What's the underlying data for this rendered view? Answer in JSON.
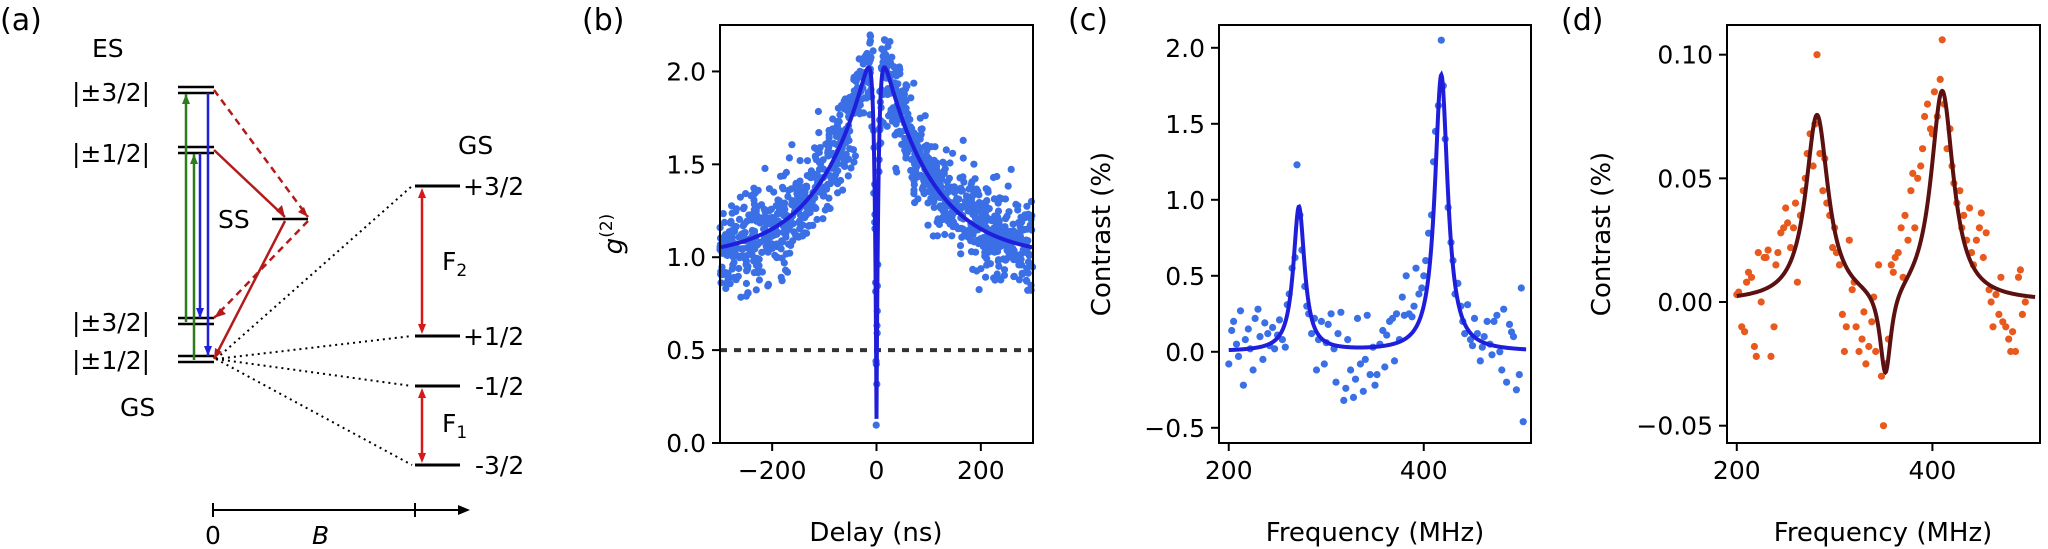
{
  "colors": {
    "blue": "#1f1fdb",
    "blue_data": "#3a6fe6",
    "orange": "#e8591d",
    "dark_red": "#5c1010",
    "red": "#d61a1a",
    "dark_red_line": "#b31b1b",
    "green": "#2e7d1d",
    "gray": "#333333"
  },
  "panel_a": {
    "panel_label": "(a)",
    "es_label": "ES",
    "es_upper": "|±3/2|",
    "es_lower": "|±1/2|",
    "ss_label": "SS",
    "gs_upper": "|±3/2|",
    "gs_lower": "|±1/2|",
    "gs_label": "GS",
    "gs_right_label": "GS",
    "zeeman_levels": [
      "+3/2",
      "+1/2",
      "-1/2",
      "-3/2"
    ],
    "f2_label": "F",
    "f2_sub": "2",
    "f1_label": "F",
    "f1_sub": "1",
    "b_axis_zero": "0",
    "b_axis_label": "B"
  },
  "chart_data": [
    {
      "type": "scatter",
      "panel_label": "(b)",
      "xlabel": "Delay (ns)",
      "ylabel_main": "g",
      "ylabel_sup": "(2)",
      "xlim": [
        -300,
        300
      ],
      "ylim": [
        0.0,
        2.25
      ],
      "xticks": [
        -200,
        0,
        200
      ],
      "xtick_labels": [
        "−200",
        "0",
        "200"
      ],
      "yticks": [
        0.0,
        0.5,
        1.0,
        1.5,
        2.0
      ],
      "ytick_labels": [
        "0.0",
        "0.5",
        "1.0",
        "1.5",
        "2.0"
      ],
      "reference_line_y": 0.5,
      "fit": {
        "type": "g2_bunching",
        "baseline": 1.0,
        "bunching_amplitude": 1.25,
        "bunching_tau_ns": 95,
        "antibunching_tau_ns": 4,
        "min": 0.13
      }
    },
    {
      "type": "scatter",
      "panel_label": "(c)",
      "xlabel": "Frequency (MHz)",
      "ylabel": "Contrast (%)",
      "xlim": [
        190,
        510
      ],
      "ylim": [
        -0.6,
        2.15
      ],
      "xticks": [
        200,
        400
      ],
      "xtick_labels": [
        "200",
        "400"
      ],
      "yticks": [
        -0.5,
        0.0,
        0.5,
        1.0,
        1.5,
        2.0
      ],
      "ytick_labels": [
        "−0.5",
        "0.0",
        "0.5",
        "1.0",
        "1.5",
        "2.0"
      ],
      "fit": {
        "type": "lorentzian_sum",
        "peaks": [
          {
            "center": 272,
            "amplitude": 0.95,
            "hwhm": 7
          },
          {
            "center": 418,
            "amplitude": 1.82,
            "hwhm": 8
          }
        ],
        "offset": 0.0
      },
      "data_points": [
        [
          200,
          -0.08
        ],
        [
          203,
          0.14
        ],
        [
          205,
          0.2
        ],
        [
          208,
          0.05
        ],
        [
          210,
          -0.03
        ],
        [
          212,
          0.27
        ],
        [
          215,
          -0.22
        ],
        [
          217,
          0.08
        ],
        [
          220,
          0.15
        ],
        [
          222,
          0.02
        ],
        [
          225,
          -0.12
        ],
        [
          227,
          0.22
        ],
        [
          230,
          0.28
        ],
        [
          232,
          0.1
        ],
        [
          235,
          -0.05
        ],
        [
          237,
          0.19
        ],
        [
          240,
          0.12
        ],
        [
          242,
          0.04
        ],
        [
          245,
          0.16
        ],
        [
          247,
          0.02
        ],
        [
          250,
          0.11
        ],
        [
          252,
          0.21
        ],
        [
          255,
          0.08
        ],
        [
          258,
          0.03
        ],
        [
          260,
          0.31
        ],
        [
          262,
          0.38
        ],
        [
          265,
          0.55
        ],
        [
          268,
          0.62
        ],
        [
          270,
          1.23
        ],
        [
          273,
          0.9
        ],
        [
          275,
          0.67
        ],
        [
          278,
          0.43
        ],
        [
          280,
          0.3
        ],
        [
          282,
          0.25
        ],
        [
          285,
          0.12
        ],
        [
          288,
          0.22
        ],
        [
          290,
          -0.12
        ],
        [
          292,
          0.08
        ],
        [
          295,
          0.2
        ],
        [
          298,
          -0.08
        ],
        [
          300,
          0.06
        ],
        [
          302,
          0.18
        ],
        [
          305,
          0.25
        ],
        [
          308,
          0.02
        ],
        [
          310,
          -0.2
        ],
        [
          312,
          0.12
        ],
        [
          315,
          0.26
        ],
        [
          318,
          -0.32
        ],
        [
          320,
          -0.24
        ],
        [
          322,
          0.08
        ],
        [
          325,
          -0.12
        ],
        [
          328,
          -0.3
        ],
        [
          330,
          -0.18
        ],
        [
          332,
          0.22
        ],
        [
          335,
          -0.08
        ],
        [
          338,
          -0.26
        ],
        [
          340,
          -0.05
        ],
        [
          342,
          0.24
        ],
        [
          345,
          -0.15
        ],
        [
          348,
          0.03
        ],
        [
          350,
          -0.22
        ],
        [
          352,
          -0.15
        ],
        [
          355,
          0.05
        ],
        [
          358,
          0.14
        ],
        [
          360,
          -0.1
        ],
        [
          362,
          0.11
        ],
        [
          365,
          0.2
        ],
        [
          368,
          0.22
        ],
        [
          370,
          -0.06
        ],
        [
          372,
          0.25
        ],
        [
          375,
          0.08
        ],
        [
          378,
          0.36
        ],
        [
          380,
          0.24
        ],
        [
          382,
          0.5
        ],
        [
          385,
          0.25
        ],
        [
          388,
          0.23
        ],
        [
          390,
          0.3
        ],
        [
          392,
          0.55
        ],
        [
          395,
          0.38
        ],
        [
          398,
          0.42
        ],
        [
          400,
          0.5
        ],
        [
          402,
          0.6
        ],
        [
          405,
          0.78
        ],
        [
          408,
          0.9
        ],
        [
          410,
          1.25
        ],
        [
          412,
          1.45
        ],
        [
          415,
          1.62
        ],
        [
          418,
          2.05
        ],
        [
          420,
          1.75
        ],
        [
          422,
          1.4
        ],
        [
          425,
          0.95
        ],
        [
          428,
          0.72
        ],
        [
          430,
          0.6
        ],
        [
          432,
          0.38
        ],
        [
          435,
          0.45
        ],
        [
          438,
          0.3
        ],
        [
          440,
          0.2
        ],
        [
          442,
          0.12
        ],
        [
          445,
          0.31
        ],
        [
          448,
          0.08
        ],
        [
          450,
          0.04
        ],
        [
          452,
          0.22
        ],
        [
          455,
          0.12
        ],
        [
          458,
          -0.06
        ],
        [
          460,
          0.03
        ],
        [
          462,
          0.1
        ],
        [
          465,
          0.2
        ],
        [
          468,
          0.05
        ],
        [
          470,
          -0.02
        ],
        [
          472,
          0.2
        ],
        [
          475,
          0.24
        ],
        [
          478,
          0.0
        ],
        [
          480,
          -0.12
        ],
        [
          482,
          0.28
        ],
        [
          485,
          -0.2
        ],
        [
          488,
          0.18
        ],
        [
          490,
          0.13
        ],
        [
          492,
          0.1
        ],
        [
          495,
          -0.25
        ],
        [
          498,
          -0.15
        ],
        [
          500,
          0.42
        ],
        [
          502,
          -0.46
        ]
      ]
    },
    {
      "type": "scatter",
      "panel_label": "(d)",
      "xlabel": "Frequency (MHz)",
      "ylabel": "Contrast (%)",
      "xlim": [
        190,
        510
      ],
      "ylim": [
        -0.057,
        0.112
      ],
      "xticks": [
        200,
        400
      ],
      "xtick_labels": [
        "200",
        "400"
      ],
      "yticks": [
        -0.05,
        0.0,
        0.05,
        0.1
      ],
      "ytick_labels": [
        "−0.05",
        "0.00",
        "0.05",
        "0.10"
      ],
      "fit": {
        "type": "lorentzian_sum",
        "peaks": [
          {
            "center": 282,
            "amplitude": 0.075,
            "hwhm": 14
          },
          {
            "center": 352,
            "amplitude": -0.036,
            "hwhm": 7
          },
          {
            "center": 410,
            "amplitude": 0.085,
            "hwhm": 14
          }
        ],
        "offset": 0.0
      },
      "data_points": [
        [
          200,
          0.003
        ],
        [
          202,
          0.004
        ],
        [
          205,
          -0.01
        ],
        [
          208,
          -0.012
        ],
        [
          210,
          0.008
        ],
        [
          212,
          0.012
        ],
        [
          215,
          0.01
        ],
        [
          218,
          -0.018
        ],
        [
          220,
          -0.022
        ],
        [
          222,
          0.02
        ],
        [
          225,
          0.0
        ],
        [
          228,
          0.018
        ],
        [
          230,
          0.018
        ],
        [
          232,
          0.021
        ],
        [
          235,
          -0.022
        ],
        [
          238,
          -0.01
        ],
        [
          240,
          0.015
        ],
        [
          242,
          0.02
        ],
        [
          245,
          0.028
        ],
        [
          248,
          0.03
        ],
        [
          250,
          0.038
        ],
        [
          252,
          0.032
        ],
        [
          255,
          0.022
        ],
        [
          258,
          0.03
        ],
        [
          260,
          0.04
        ],
        [
          262,
          0.008
        ],
        [
          265,
          0.035
        ],
        [
          268,
          0.045
        ],
        [
          270,
          0.05
        ],
        [
          272,
          0.06
        ],
        [
          275,
          0.068
        ],
        [
          278,
          0.055
        ],
        [
          280,
          0.072
        ],
        [
          282,
          0.1
        ],
        [
          285,
          0.06
        ],
        [
          288,
          0.045
        ],
        [
          290,
          0.058
        ],
        [
          292,
          0.04
        ],
        [
          295,
          0.035
        ],
        [
          298,
          0.022
        ],
        [
          300,
          0.03
        ],
        [
          302,
          0.02
        ],
        [
          305,
          0.015
        ],
        [
          308,
          -0.005
        ],
        [
          310,
          -0.02
        ],
        [
          312,
          -0.01
        ],
        [
          315,
          0.025
        ],
        [
          318,
          0.005
        ],
        [
          320,
          0.008
        ],
        [
          322,
          -0.01
        ],
        [
          325,
          -0.02
        ],
        [
          328,
          -0.015
        ],
        [
          330,
          -0.004
        ],
        [
          332,
          -0.025
        ],
        [
          335,
          -0.018
        ],
        [
          338,
          -0.008
        ],
        [
          340,
          0.002
        ],
        [
          342,
          -0.02
        ],
        [
          345,
          0.015
        ],
        [
          348,
          -0.03
        ],
        [
          350,
          -0.05
        ],
        [
          352,
          -0.025
        ],
        [
          355,
          -0.015
        ],
        [
          358,
          0.015
        ],
        [
          360,
          0.012
        ],
        [
          362,
          0.018
        ],
        [
          365,
          0.02
        ],
        [
          368,
          0.03
        ],
        [
          370,
          0.01
        ],
        [
          372,
          0.035
        ],
        [
          375,
          0.025
        ],
        [
          378,
          0.045
        ],
        [
          380,
          0.052
        ],
        [
          382,
          0.03
        ],
        [
          385,
          0.05
        ],
        [
          388,
          0.055
        ],
        [
          390,
          0.062
        ],
        [
          392,
          0.075
        ],
        [
          395,
          0.08
        ],
        [
          398,
          0.07
        ],
        [
          400,
          0.068
        ],
        [
          402,
          0.085
        ],
        [
          405,
          0.075
        ],
        [
          408,
          0.09
        ],
        [
          410,
          0.106
        ],
        [
          412,
          0.08
        ],
        [
          415,
          0.062
        ],
        [
          418,
          0.07
        ],
        [
          420,
          0.055
        ],
        [
          422,
          0.048
        ],
        [
          425,
          0.04
        ],
        [
          428,
          0.045
        ],
        [
          430,
          0.03
        ],
        [
          432,
          0.035
        ],
        [
          435,
          0.025
        ],
        [
          438,
          0.038
        ],
        [
          440,
          0.02
        ],
        [
          442,
          0.015
        ],
        [
          445,
          0.025
        ],
        [
          448,
          0.03
        ],
        [
          450,
          0.036
        ],
        [
          452,
          0.018
        ],
        [
          455,
          0.028
        ],
        [
          458,
          0.005
        ],
        [
          460,
          0.0
        ],
        [
          462,
          -0.01
        ],
        [
          465,
          0.003
        ],
        [
          468,
          -0.005
        ],
        [
          470,
          0.01
        ],
        [
          472,
          -0.008
        ],
        [
          475,
          -0.01
        ],
        [
          478,
          -0.015
        ],
        [
          480,
          -0.02
        ],
        [
          482,
          -0.012
        ],
        [
          485,
          -0.02
        ],
        [
          488,
          0.01
        ],
        [
          490,
          0.013
        ],
        [
          492,
          -0.005
        ],
        [
          495,
          0.0
        ]
      ]
    }
  ]
}
